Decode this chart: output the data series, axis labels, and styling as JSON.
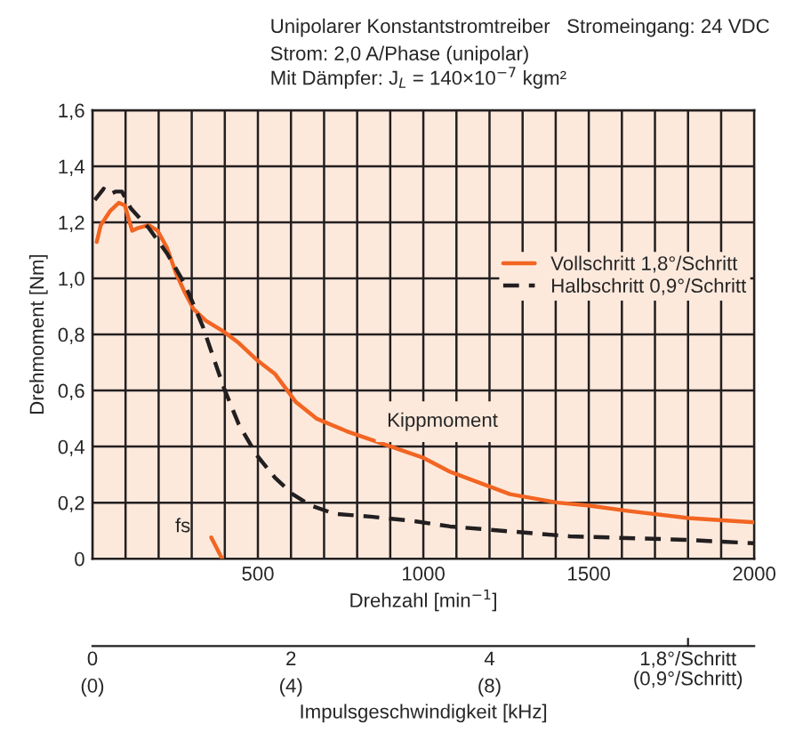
{
  "chart_data": {
    "type": "line",
    "title": "Unipolarer Konstantstromtreiber   Stromeingang: 24 VDC",
    "subtitle": "Strom: 2,0 A/Phase (unipolar)\nMit Dämpfer: J$_{L}$ = 140×10$^{−7}$ kgm²",
    "xlabel": "Drehzahl [min$^{−1}$]",
    "ylabel": "Drehmoment [Nm]",
    "x2label": "Impulsgeschwindigkeit [kHz]",
    "series": [
      {
        "name": "Vollschritt 1,8°/Schritt",
        "color": "#f26522",
        "line_style": "solid",
        "x": [
          13,
          25,
          53,
          80,
          98,
          120,
          138,
          170,
          197,
          225,
          252,
          279,
          306,
          342,
          397,
          442,
          496,
          551,
          614,
          677,
          768,
          877,
          1000,
          1081,
          1262,
          1406,
          1496,
          1622,
          1801,
          2000
        ],
        "values": [
          1.13,
          1.19,
          1.24,
          1.27,
          1.26,
          1.17,
          1.18,
          1.19,
          1.17,
          1.11,
          1.02,
          0.95,
          0.89,
          0.85,
          0.81,
          0.77,
          0.71,
          0.66,
          0.56,
          0.5,
          0.455,
          0.41,
          0.36,
          0.31,
          0.23,
          0.2,
          0.19,
          0.17,
          0.145,
          0.13
        ]
      },
      {
        "name": "Halbschritt 0,9°/Schritt",
        "color": "#231f20",
        "line_style": "dashed",
        "x": [
          7,
          34,
          53,
          71,
          89,
          116,
          170,
          225,
          279,
          333,
          397,
          442,
          496,
          551,
          605,
          659,
          732,
          841,
          967,
          1081,
          1442,
          1801,
          2000
        ],
        "values": [
          1.28,
          1.32,
          1.3,
          1.31,
          1.31,
          1.25,
          1.18,
          1.09,
          0.98,
          0.83,
          0.61,
          0.48,
          0.37,
          0.29,
          0.23,
          0.19,
          0.16,
          0.15,
          0.135,
          0.115,
          0.08,
          0.067,
          0.055
        ]
      },
      {
        "color": "#f26522",
        "line_style": "solid",
        "x": [
          359,
          392
        ],
        "values": [
          0.076,
          0
        ]
      }
    ],
    "annotations": [
      "fs",
      "Kippmoment",
      "(0)",
      "(4)",
      "(8)",
      "1,8°/Schritt\n(0,9°/Schritt)"
    ],
    "xlim": [
      0,
      2000
    ],
    "xticks": [
      {
        "value": 0,
        "label": null
      },
      {
        "value": 100,
        "label": null
      },
      {
        "value": 200,
        "label": null
      },
      {
        "value": 300,
        "label": null
      },
      {
        "value": 400,
        "label": null
      },
      500,
      {
        "value": 600,
        "label": null
      },
      {
        "value": 700,
        "label": null
      },
      {
        "value": 800,
        "label": null
      },
      {
        "value": 900,
        "label": null
      },
      1000,
      {
        "value": 1100,
        "label": null
      },
      {
        "value": 1200,
        "label": null
      },
      {
        "value": 1300,
        "label": null
      },
      {
        "value": 1400,
        "label": null
      },
      1500,
      {
        "value": 1600,
        "label": null
      },
      {
        "value": 1700,
        "label": null
      },
      {
        "value": 1800,
        "label": null
      },
      {
        "value": 1900,
        "label": null
      },
      2000
    ],
    "ylim": [
      0,
      1.6
    ],
    "yticks": [
      {
        "value": 0,
        "label": "0"
      },
      {
        "value": 0.2,
        "label": "0,2"
      },
      {
        "value": 0.4,
        "label": "0,4"
      },
      {
        "value": 0.6,
        "label": "0,6"
      },
      {
        "value": 0.8,
        "label": "0,8"
      },
      {
        "value": 1.0,
        "label": "1,0"
      },
      {
        "value": 1.2,
        "label": "1,2"
      },
      {
        "value": 1.4,
        "label": "1,4"
      },
      {
        "value": 1.6,
        "label": "1,6"
      }
    ],
    "x2lim": [
      0,
      6.667
    ],
    "x2ticks": [
      0,
      2,
      4
    ],
    "grid": true,
    "legend": "right",
    "marker": "none"
  }
}
